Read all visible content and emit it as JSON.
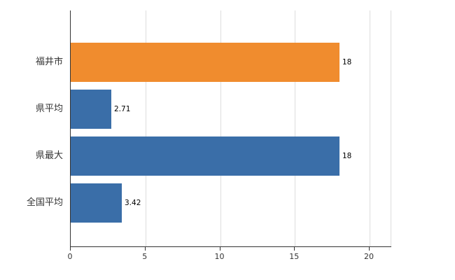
{
  "chart_data": {
    "type": "bar",
    "orientation": "horizontal",
    "title": "",
    "xlabel": "",
    "ylabel": "",
    "categories": [
      "福井市",
      "県平均",
      "県最大",
      "全国平均"
    ],
    "values": [
      18,
      2.71,
      18,
      3.42
    ],
    "value_labels": [
      "18",
      "2.71",
      "18",
      "3.42"
    ],
    "bar_colors": [
      "#F08C2E",
      "#3A6EA8",
      "#3A6EA8",
      "#3A6EA8"
    ],
    "xlim": [
      0,
      20
    ],
    "xticks": [
      0,
      5,
      10,
      15,
      20
    ],
    "xtick_labels": [
      "0",
      "5",
      "10",
      "15",
      "20"
    ],
    "grid": true,
    "legend_position": "none",
    "colors": {
      "grid": "#dddddd",
      "axis": "#333333",
      "value_label": "#000000",
      "background": "#ffffff"
    }
  }
}
